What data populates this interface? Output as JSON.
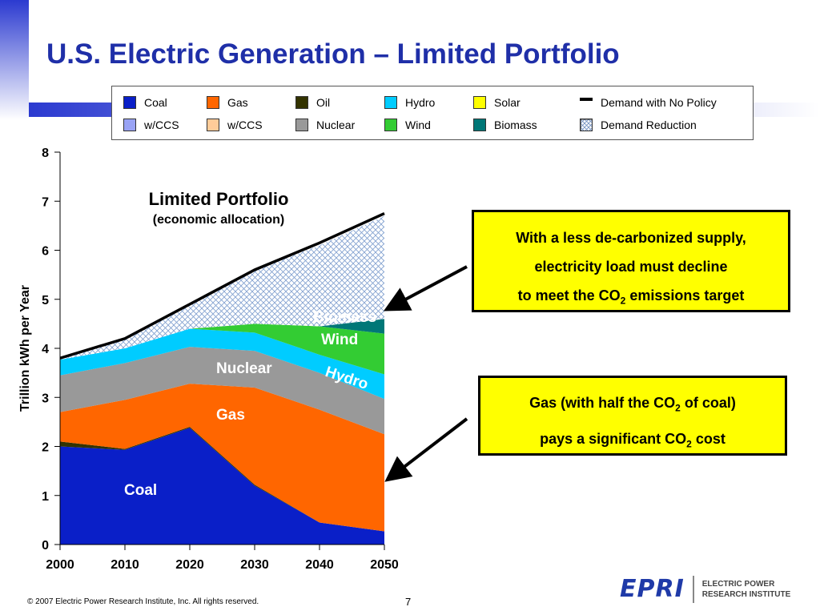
{
  "slide": {
    "title": "U.S. Electric Generation – Limited Portfolio",
    "copyright": "© 2007 Electric Power Research Institute, Inc. All rights reserved.",
    "page_number": "7",
    "logo_text": "EPRI",
    "logo_name_line1": "ELECTRIC POWER",
    "logo_name_line2": "RESEARCH INSTITUTE",
    "accent_color": "#1f2fa8"
  },
  "legend": {
    "items": [
      {
        "label": "Coal",
        "color": "#0a1fc8"
      },
      {
        "label": "Gas",
        "color": "#ff6600"
      },
      {
        "label": "Oil",
        "color": "#333300"
      },
      {
        "label": "Hydro",
        "color": "#00ccff"
      },
      {
        "label": "Solar",
        "color": "#ffff00"
      },
      {
        "label": "Demand with No Policy",
        "color": "#000000"
      },
      {
        "label": "w/CCS",
        "color": "#99a3f5"
      },
      {
        "label": "w/CCS",
        "color": "#ffcc99"
      },
      {
        "label": "Nuclear",
        "color": "#999999"
      },
      {
        "label": "Wind",
        "color": "#33cc33"
      },
      {
        "label": "Biomass",
        "color": "#007777"
      },
      {
        "label": "Demand Reduction",
        "color": "#e3ecf8"
      }
    ]
  },
  "chart_data": {
    "type": "area",
    "title": "Limited Portfolio",
    "subtitle": "(economic allocation)",
    "ylabel": "Trillion kWh per Year",
    "ylim": [
      0,
      8
    ],
    "yticks": [
      "0",
      "1",
      "2",
      "3",
      "4",
      "5",
      "6",
      "7",
      "8"
    ],
    "x": [
      "2000",
      "2010",
      "2020",
      "2030",
      "2040",
      "2050"
    ],
    "series": [
      {
        "name": "Coal",
        "color": "#0a1fc8",
        "values": [
          2.0,
          1.93,
          2.38,
          1.2,
          0.45,
          0.27
        ]
      },
      {
        "name": "Oil",
        "color": "#333300",
        "values": [
          0.1,
          0.02,
          0.02,
          0.02,
          0.0,
          0.0
        ]
      },
      {
        "name": "Gas",
        "color": "#ff6600",
        "values": [
          0.6,
          1.0,
          0.88,
          1.98,
          2.3,
          1.98
        ]
      },
      {
        "name": "Nuclear",
        "color": "#999999",
        "values": [
          0.75,
          0.75,
          0.75,
          0.75,
          0.75,
          0.72
        ]
      },
      {
        "name": "Hydro",
        "color": "#00ccff",
        "values": [
          0.32,
          0.3,
          0.37,
          0.37,
          0.37,
          0.5
        ]
      },
      {
        "name": "Wind",
        "color": "#33cc33",
        "values": [
          0.0,
          0.0,
          0.0,
          0.18,
          0.58,
          0.83
        ]
      },
      {
        "name": "Biomass",
        "color": "#007777",
        "values": [
          0.0,
          0.0,
          0.0,
          0.0,
          0.0,
          0.3
        ]
      },
      {
        "name": "Demand Reduction",
        "color": "#e3ecf8",
        "values": [
          0.0,
          0.2,
          0.5,
          1.1,
          1.65,
          2.1
        ]
      }
    ],
    "demand_no_policy": [
      3.8,
      4.2,
      4.9,
      5.6,
      6.15,
      6.75
    ],
    "area_labels": {
      "coal": "Coal",
      "gas": "Gas",
      "nuclear": "Nuclear",
      "hydro": "Hydro",
      "wind": "Wind",
      "biomass": "Biomass"
    }
  },
  "callouts": {
    "top": {
      "line1": "With a less de-carbonized supply,",
      "line2": "electricity load must decline",
      "line3_pre": "to meet the CO",
      "line3_sub": "2",
      "line3_post": " emissions target"
    },
    "bottom": {
      "line1_pre": "Gas (with half the CO",
      "line1_sub": "2",
      "line1_post": " of coal)",
      "line2_pre": "pays a significant CO",
      "line2_sub": "2",
      "line2_post": " cost"
    }
  }
}
